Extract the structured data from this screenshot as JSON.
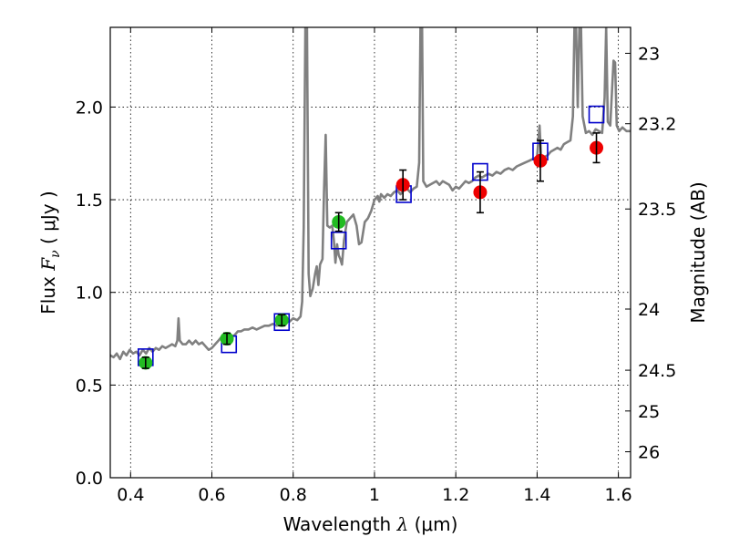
{
  "chart_data": {
    "type": "scatter",
    "title": "",
    "xlabel": "Wavelength",
    "xlabel_symbol": "λ",
    "xlabel_unit": "(μm)",
    "ylabel": "Flux",
    "ylabel_symbol": "F",
    "ylabel_subscript": "ν",
    "ylabel_unit": "( μJy )",
    "y2label": "Magnitude (AB)",
    "xlim": [
      0.35,
      1.63
    ],
    "ylim": [
      0.0,
      2.43
    ],
    "grid": true,
    "grid_style": "dotted",
    "x_ticks": [
      0.4,
      0.6,
      0.8,
      1.0,
      1.2,
      1.4,
      1.6
    ],
    "x_tick_labels": [
      "0.4",
      "0.6",
      "0.8",
      "1",
      "1.2",
      "1.4",
      "1.6"
    ],
    "y_ticks": [
      0.0,
      0.5,
      1.0,
      1.5,
      2.0
    ],
    "y_tick_labels": [
      "0.0",
      "0.5",
      "1.0",
      "1.5",
      "2.0"
    ],
    "y2_ticks": [
      {
        "label": "23",
        "flux": 2.29
      },
      {
        "label": "23.2",
        "flux": 1.91
      },
      {
        "label": "23.5",
        "flux": 1.45
      },
      {
        "label": "24",
        "flux": 0.91
      },
      {
        "label": "24.5",
        "flux": 0.58
      },
      {
        "label": "25",
        "flux": 0.36
      },
      {
        "label": "26",
        "flux": 0.14
      }
    ],
    "series": [
      {
        "kind": "spectrum",
        "color": "#808080",
        "points": [
          [
            0.35,
            0.66
          ],
          [
            0.358,
            0.65
          ],
          [
            0.366,
            0.67
          ],
          [
            0.374,
            0.64
          ],
          [
            0.382,
            0.68
          ],
          [
            0.39,
            0.66
          ],
          [
            0.398,
            0.69
          ],
          [
            0.406,
            0.67
          ],
          [
            0.414,
            0.68
          ],
          [
            0.422,
            0.66
          ],
          [
            0.43,
            0.69
          ],
          [
            0.438,
            0.67
          ],
          [
            0.446,
            0.7
          ],
          [
            0.454,
            0.68
          ],
          [
            0.462,
            0.7
          ],
          [
            0.47,
            0.69
          ],
          [
            0.478,
            0.71
          ],
          [
            0.486,
            0.7
          ],
          [
            0.494,
            0.71
          ],
          [
            0.502,
            0.72
          ],
          [
            0.51,
            0.71
          ],
          [
            0.515,
            0.74
          ],
          [
            0.518,
            0.86
          ],
          [
            0.521,
            0.74
          ],
          [
            0.528,
            0.72
          ],
          [
            0.536,
            0.72
          ],
          [
            0.544,
            0.74
          ],
          [
            0.552,
            0.72
          ],
          [
            0.56,
            0.74
          ],
          [
            0.568,
            0.72
          ],
          [
            0.576,
            0.73
          ],
          [
            0.584,
            0.71
          ],
          [
            0.592,
            0.69
          ],
          [
            0.6,
            0.7
          ],
          [
            0.608,
            0.72
          ],
          [
            0.616,
            0.74
          ],
          [
            0.624,
            0.76
          ],
          [
            0.632,
            0.75
          ],
          [
            0.64,
            0.77
          ],
          [
            0.648,
            0.76
          ],
          [
            0.656,
            0.77
          ],
          [
            0.664,
            0.79
          ],
          [
            0.672,
            0.79
          ],
          [
            0.68,
            0.8
          ],
          [
            0.69,
            0.8
          ],
          [
            0.7,
            0.81
          ],
          [
            0.71,
            0.8
          ],
          [
            0.72,
            0.81
          ],
          [
            0.73,
            0.82
          ],
          [
            0.74,
            0.82
          ],
          [
            0.75,
            0.83
          ],
          [
            0.76,
            0.82
          ],
          [
            0.77,
            0.84
          ],
          [
            0.78,
            0.85
          ],
          [
            0.79,
            0.84
          ],
          [
            0.8,
            0.86
          ],
          [
            0.81,
            0.85
          ],
          [
            0.818,
            0.87
          ],
          [
            0.822,
            0.95
          ],
          [
            0.826,
            1.35
          ],
          [
            0.83,
            2.43
          ],
          [
            0.834,
            2.43
          ],
          [
            0.838,
            1.1
          ],
          [
            0.842,
            0.98
          ],
          [
            0.848,
            1.02
          ],
          [
            0.854,
            1.1
          ],
          [
            0.858,
            1.14
          ],
          [
            0.862,
            1.04
          ],
          [
            0.866,
            1.15
          ],
          [
            0.872,
            1.18
          ],
          [
            0.876,
            1.55
          ],
          [
            0.88,
            1.85
          ],
          [
            0.884,
            1.36
          ],
          [
            0.89,
            1.35
          ],
          [
            0.896,
            1.36
          ],
          [
            0.9,
            1.28
          ],
          [
            0.904,
            1.16
          ],
          [
            0.908,
            1.26
          ],
          [
            0.912,
            1.2
          ],
          [
            0.916,
            1.18
          ],
          [
            0.92,
            1.15
          ],
          [
            0.925,
            1.28
          ],
          [
            0.932,
            1.38
          ],
          [
            0.94,
            1.4
          ],
          [
            0.948,
            1.42
          ],
          [
            0.956,
            1.36
          ],
          [
            0.962,
            1.26
          ],
          [
            0.968,
            1.27
          ],
          [
            0.976,
            1.38
          ],
          [
            0.984,
            1.4
          ],
          [
            0.992,
            1.44
          ],
          [
            1.0,
            1.5
          ],
          [
            1.008,
            1.52
          ],
          [
            1.012,
            1.49
          ],
          [
            1.016,
            1.53
          ],
          [
            1.024,
            1.51
          ],
          [
            1.032,
            1.53
          ],
          [
            1.04,
            1.52
          ],
          [
            1.048,
            1.54
          ],
          [
            1.056,
            1.55
          ],
          [
            1.064,
            1.53
          ],
          [
            1.072,
            1.55
          ],
          [
            1.08,
            1.56
          ],
          [
            1.088,
            1.54
          ],
          [
            1.096,
            1.56
          ],
          [
            1.104,
            1.57
          ],
          [
            1.11,
            1.7
          ],
          [
            1.113,
            2.43
          ],
          [
            1.117,
            2.43
          ],
          [
            1.12,
            1.6
          ],
          [
            1.128,
            1.57
          ],
          [
            1.136,
            1.58
          ],
          [
            1.144,
            1.59
          ],
          [
            1.152,
            1.6
          ],
          [
            1.16,
            1.58
          ],
          [
            1.168,
            1.6
          ],
          [
            1.176,
            1.59
          ],
          [
            1.184,
            1.58
          ],
          [
            1.192,
            1.55
          ],
          [
            1.2,
            1.57
          ],
          [
            1.208,
            1.56
          ],
          [
            1.216,
            1.58
          ],
          [
            1.224,
            1.6
          ],
          [
            1.232,
            1.59
          ],
          [
            1.24,
            1.6
          ],
          [
            1.248,
            1.62
          ],
          [
            1.256,
            1.63
          ],
          [
            1.264,
            1.62
          ],
          [
            1.272,
            1.63
          ],
          [
            1.28,
            1.64
          ],
          [
            1.29,
            1.63
          ],
          [
            1.3,
            1.65
          ],
          [
            1.31,
            1.64
          ],
          [
            1.32,
            1.66
          ],
          [
            1.33,
            1.67
          ],
          [
            1.34,
            1.66
          ],
          [
            1.35,
            1.68
          ],
          [
            1.36,
            1.69
          ],
          [
            1.37,
            1.7
          ],
          [
            1.38,
            1.71
          ],
          [
            1.39,
            1.72
          ],
          [
            1.4,
            1.73
          ],
          [
            1.406,
            1.9
          ],
          [
            1.41,
            1.72
          ],
          [
            1.418,
            1.73
          ],
          [
            1.426,
            1.74
          ],
          [
            1.434,
            1.76
          ],
          [
            1.442,
            1.77
          ],
          [
            1.45,
            1.78
          ],
          [
            1.458,
            1.77
          ],
          [
            1.466,
            1.8
          ],
          [
            1.474,
            1.81
          ],
          [
            1.482,
            1.82
          ],
          [
            1.488,
            1.95
          ],
          [
            1.492,
            2.43
          ],
          [
            1.496,
            2.43
          ],
          [
            1.5,
            2.0
          ],
          [
            1.504,
            2.43
          ],
          [
            1.508,
            2.43
          ],
          [
            1.512,
            1.95
          ],
          [
            1.52,
            1.86
          ],
          [
            1.528,
            1.87
          ],
          [
            1.536,
            1.85
          ],
          [
            1.544,
            1.88
          ],
          [
            1.552,
            1.87
          ],
          [
            1.56,
            1.86
          ],
          [
            1.566,
            2.05
          ],
          [
            1.57,
            2.43
          ],
          [
            1.574,
            1.92
          ],
          [
            1.58,
            1.9
          ],
          [
            1.588,
            2.25
          ],
          [
            1.592,
            2.24
          ],
          [
            1.596,
            1.9
          ],
          [
            1.602,
            1.87
          ],
          [
            1.61,
            1.89
          ],
          [
            1.62,
            1.87
          ],
          [
            1.63,
            1.87
          ]
        ]
      },
      {
        "kind": "model-boxes",
        "color": "#0000cc",
        "points": [
          [
            0.437,
            0.65
          ],
          [
            0.642,
            0.72
          ],
          [
            0.772,
            0.84
          ],
          [
            0.912,
            1.28
          ],
          [
            1.072,
            1.53
          ],
          [
            1.26,
            1.65
          ],
          [
            1.408,
            1.76
          ],
          [
            1.546,
            1.96
          ]
        ]
      },
      {
        "kind": "observed-optical",
        "color": "#22bb22",
        "points": [
          {
            "x": 0.437,
            "y": 0.62,
            "err": 0.03
          },
          {
            "x": 0.637,
            "y": 0.75,
            "err": 0.03
          },
          {
            "x": 0.772,
            "y": 0.85,
            "err": 0.03
          },
          {
            "x": 0.912,
            "y": 1.38,
            "err": 0.05
          }
        ]
      },
      {
        "kind": "observed-nir",
        "color": "#ee0000",
        "points": [
          {
            "x": 1.07,
            "y": 1.58,
            "err": 0.08
          },
          {
            "x": 1.26,
            "y": 1.54,
            "err": 0.11
          },
          {
            "x": 1.408,
            "y": 1.71,
            "err": 0.11
          },
          {
            "x": 1.546,
            "y": 1.78,
            "err": 0.08
          }
        ]
      }
    ]
  }
}
